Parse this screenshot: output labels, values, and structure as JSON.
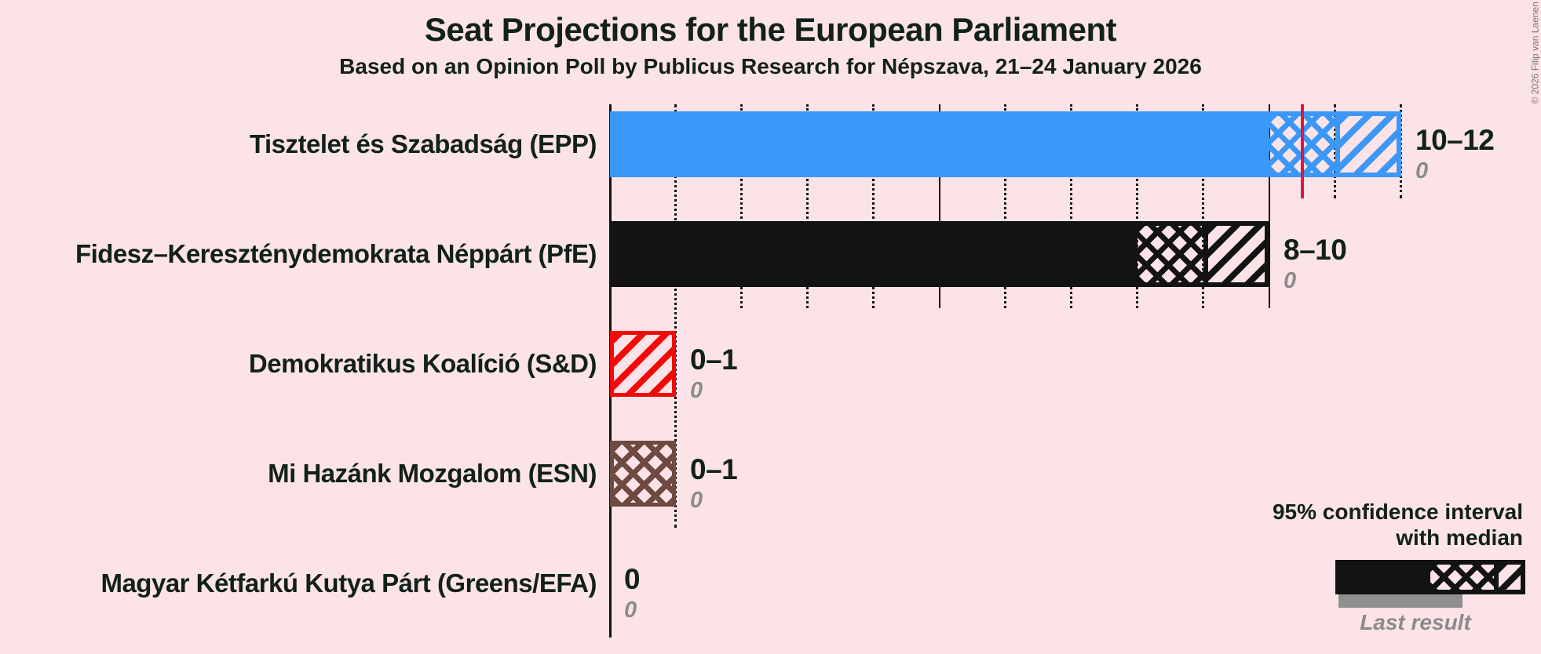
{
  "header": {
    "title": "Seat Projections for the European Parliament",
    "subtitle": "Based on an Opinion Poll by Publicus Research for Népszava, 21–24 January 2026"
  },
  "copyright": "© 2026 Filip van Laenen",
  "legend": {
    "ci_line1": "95% confidence interval",
    "ci_line2": "with median",
    "last_result": "Last result"
  },
  "colors": {
    "background": "#fbe3e7",
    "text_dark": "#12211a",
    "text_gray": "#8b8b8b",
    "gridline": "#141414",
    "median_line": "#e0173f",
    "last_result_bar": "#8f8f8f",
    "epp_blue": "#3b97f8",
    "pfe_black": "#131313",
    "sd_red": "#f40808",
    "esn_brown": "#6f4a40"
  },
  "chart_data": {
    "type": "bar",
    "orientation": "horizontal",
    "x_axis": {
      "min": 0,
      "max": 13,
      "major_grid_every": 5,
      "unit": "seats"
    },
    "bars": [
      {
        "party": "Tisztelet és Szabadság (EPP)",
        "ci_label": "10–12",
        "last_result": "0",
        "low": 10,
        "high": 12,
        "median": 10.5,
        "color": "#3b97f8",
        "segments": [
          {
            "style": "solid",
            "from": 0,
            "to": 10
          },
          {
            "style": "crosshatch",
            "from": 10,
            "to": 11
          },
          {
            "style": "diagonal",
            "from": 11,
            "to": 12
          }
        ]
      },
      {
        "party": "Fidesz–Kereszténydemokrata Néppárt (PfE)",
        "ci_label": "8–10",
        "last_result": "0",
        "low": 8,
        "high": 10,
        "median": null,
        "color": "#131313",
        "segments": [
          {
            "style": "solid",
            "from": 0,
            "to": 8
          },
          {
            "style": "crosshatch",
            "from": 8,
            "to": 9
          },
          {
            "style": "diagonal",
            "from": 9,
            "to": 10
          }
        ]
      },
      {
        "party": "Demokratikus Koalíció (S&D)",
        "ci_label": "0–1",
        "last_result": "0",
        "low": 0,
        "high": 1,
        "median": null,
        "color": "#f40808",
        "segments": [
          {
            "style": "diagonal",
            "from": 0,
            "to": 1
          }
        ]
      },
      {
        "party": "Mi Hazánk Mozgalom (ESN)",
        "ci_label": "0–1",
        "last_result": "0",
        "low": 0,
        "high": 1,
        "median": null,
        "color": "#6f4a40",
        "segments": [
          {
            "style": "crosshatch",
            "from": 0,
            "to": 1
          }
        ]
      },
      {
        "party": "Magyar Kétfarkú Kutya Párt (Greens/EFA)",
        "ci_label": "0",
        "last_result": "0",
        "low": 0,
        "high": 0,
        "median": null,
        "color": "#131313",
        "segments": []
      }
    ]
  }
}
